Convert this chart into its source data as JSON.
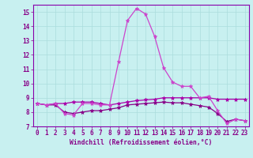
{
  "xlabel": "Windchill (Refroidissement éolien,°C)",
  "x": [
    0,
    1,
    2,
    3,
    4,
    5,
    6,
    7,
    8,
    9,
    10,
    11,
    12,
    13,
    14,
    15,
    16,
    17,
    18,
    19,
    20,
    21,
    22,
    23
  ],
  "line_peak": [
    8.6,
    8.5,
    8.6,
    7.9,
    7.8,
    8.6,
    8.6,
    8.5,
    8.5,
    11.5,
    14.4,
    15.25,
    14.85,
    13.3,
    11.1,
    10.1,
    9.8,
    9.8,
    9.0,
    9.1,
    8.1,
    7.2,
    7.5,
    7.4
  ],
  "line_mid": [
    8.6,
    8.5,
    8.6,
    8.6,
    8.7,
    8.7,
    8.7,
    8.6,
    8.5,
    8.6,
    8.7,
    8.8,
    8.85,
    8.9,
    9.0,
    9.0,
    9.0,
    9.0,
    9.0,
    9.0,
    8.9,
    8.9,
    8.9,
    8.9
  ],
  "line_low": [
    8.6,
    8.5,
    8.5,
    8.0,
    7.9,
    8.0,
    8.1,
    8.1,
    8.2,
    8.3,
    8.5,
    8.55,
    8.6,
    8.65,
    8.7,
    8.65,
    8.65,
    8.55,
    8.45,
    8.35,
    7.9,
    7.35,
    7.5,
    7.4
  ],
  "line_peak_color": "#cc44cc",
  "line_mid_color": "#aa00aa",
  "line_low_color": "#880088",
  "bg_color": "#c8f0f0",
  "grid_color": "#aadddd",
  "spine_color": "#8800aa",
  "tick_color": "#880088",
  "label_color": "#880088",
  "ylim": [
    7,
    15.5
  ],
  "yticks": [
    7,
    8,
    9,
    10,
    11,
    12,
    13,
    14,
    15
  ],
  "xlim": [
    -0.5,
    23.5
  ],
  "xticks": [
    0,
    1,
    2,
    3,
    4,
    5,
    6,
    7,
    8,
    9,
    10,
    11,
    12,
    13,
    14,
    15,
    16,
    17,
    18,
    19,
    20,
    21,
    22,
    23
  ],
  "marker": "*",
  "markersize": 3.5,
  "linewidth": 0.9,
  "xlabel_fontsize": 5.8,
  "tick_fontsize": 5.5,
  "font_family": "monospace"
}
